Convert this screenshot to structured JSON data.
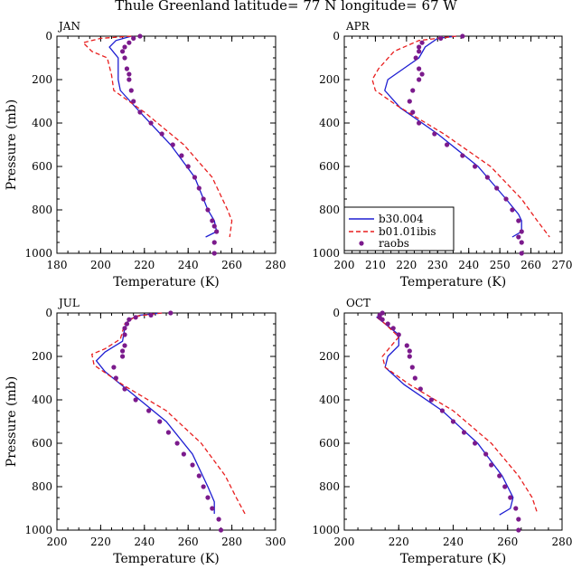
{
  "figure": {
    "title": "Thule Greenland  latitude= 77 N longitude= 67 W"
  },
  "legend": {
    "entries": [
      {
        "label": "b30.004",
        "color": "#1e1ed2",
        "style": "solid"
      },
      {
        "label": "b01.01ibis",
        "color": "#e81e1e",
        "style": "dashed"
      },
      {
        "label": "raobs",
        "color": "#7b1a8c",
        "style": "dots"
      }
    ]
  },
  "chart_data": [
    {
      "type": "line",
      "panel": "JAN",
      "xlabel": "Temperature (K)",
      "ylabel": "Pressure (mb)",
      "xlim": [
        180,
        280
      ],
      "xticks": [
        180,
        200,
        220,
        240,
        260,
        280
      ],
      "ylim": [
        1000,
        0
      ],
      "yticks": [
        0,
        200,
        400,
        600,
        800,
        1000
      ],
      "series": [
        {
          "name": "b30.004",
          "points": [
            [
              214,
              0
            ],
            [
              207,
              20
            ],
            [
              204,
              50
            ],
            [
              208,
              100
            ],
            [
              208,
              200
            ],
            [
              209,
              250
            ],
            [
              218,
              350
            ],
            [
              232,
              500
            ],
            [
              243,
              650
            ],
            [
              249,
              800
            ],
            [
              252,
              850
            ],
            [
              253,
              900
            ],
            [
              248,
              925
            ]
          ]
        },
        {
          "name": "b01.01ibis",
          "points": [
            [
              214,
              0
            ],
            [
              200,
              10
            ],
            [
              192,
              30
            ],
            [
              196,
              70
            ],
            [
              203,
              100
            ],
            [
              205,
              180
            ],
            [
              206,
              250
            ],
            [
              220,
              350
            ],
            [
              238,
              500
            ],
            [
              251,
              650
            ],
            [
              258,
              800
            ],
            [
              260,
              850
            ],
            [
              259,
              925
            ]
          ]
        },
        {
          "name": "raobs",
          "points": [
            [
              218,
              0
            ],
            [
              215,
              10
            ],
            [
              213,
              30
            ],
            [
              211,
              50
            ],
            [
              210,
              70
            ],
            [
              211,
              100
            ],
            [
              212,
              150
            ],
            [
              213,
              175
            ],
            [
              213,
              200
            ],
            [
              214,
              250
            ],
            [
              215,
              300
            ],
            [
              218,
              350
            ],
            [
              223,
              400
            ],
            [
              228,
              450
            ],
            [
              233,
              500
            ],
            [
              237,
              550
            ],
            [
              240,
              600
            ],
            [
              243,
              650
            ],
            [
              245,
              700
            ],
            [
              247,
              750
            ],
            [
              249,
              800
            ],
            [
              251,
              850
            ],
            [
              252,
              875
            ],
            [
              253,
              900
            ],
            [
              252,
              950
            ],
            [
              252,
              1000
            ]
          ]
        }
      ]
    },
    {
      "type": "line",
      "panel": "APR",
      "xlabel": "Temperature (K)",
      "ylabel": "",
      "xlim": [
        200,
        270
      ],
      "xticks": [
        200,
        210,
        220,
        230,
        240,
        250,
        260,
        270
      ],
      "ylim": [
        1000,
        0
      ],
      "yticks": [
        0,
        200,
        400,
        600,
        800,
        1000
      ],
      "series": [
        {
          "name": "b30.004",
          "points": [
            [
              236,
              0
            ],
            [
              230,
              10
            ],
            [
              226,
              50
            ],
            [
              224,
              100
            ],
            [
              219,
              150
            ],
            [
              214,
              200
            ],
            [
              213,
              250
            ],
            [
              218,
              330
            ],
            [
              230,
              450
            ],
            [
              243,
              600
            ],
            [
              252,
              750
            ],
            [
              256,
              820
            ],
            [
              257,
              850
            ],
            [
              257,
              900
            ],
            [
              254,
              925
            ]
          ]
        },
        {
          "name": "b01.01ibis",
          "points": [
            [
              236,
              0
            ],
            [
              224,
              20
            ],
            [
              216,
              70
            ],
            [
              211,
              150
            ],
            [
              209,
              200
            ],
            [
              210,
              250
            ],
            [
              217,
              320
            ],
            [
              232,
              450
            ],
            [
              247,
              600
            ],
            [
              257,
              750
            ],
            [
              262,
              850
            ],
            [
              266,
              925
            ]
          ]
        },
        {
          "name": "raobs",
          "points": [
            [
              238,
              0
            ],
            [
              231,
              10
            ],
            [
              225,
              30
            ],
            [
              224,
              50
            ],
            [
              224,
              70
            ],
            [
              223,
              100
            ],
            [
              224,
              150
            ],
            [
              225,
              175
            ],
            [
              224,
              200
            ],
            [
              222,
              250
            ],
            [
              221,
              300
            ],
            [
              222,
              350
            ],
            [
              224,
              400
            ],
            [
              229,
              450
            ],
            [
              233,
              500
            ],
            [
              238,
              550
            ],
            [
              242,
              600
            ],
            [
              246,
              650
            ],
            [
              249,
              700
            ],
            [
              252,
              750
            ],
            [
              254,
              800
            ],
            [
              256,
              850
            ],
            [
              257,
              900
            ],
            [
              256,
              925
            ],
            [
              257,
              950
            ],
            [
              257,
              1000
            ]
          ]
        }
      ]
    },
    {
      "type": "line",
      "panel": "JUL",
      "xlabel": "Temperature (K)",
      "ylabel": "Pressure (mb)",
      "xlim": [
        200,
        300
      ],
      "xticks": [
        200,
        220,
        240,
        260,
        280,
        300
      ],
      "ylim": [
        1000,
        0
      ],
      "yticks": [
        0,
        200,
        400,
        600,
        800,
        1000
      ],
      "series": [
        {
          "name": "b30.004",
          "points": [
            [
              248,
              0
            ],
            [
              238,
              10
            ],
            [
              233,
              30
            ],
            [
              231,
              70
            ],
            [
              230,
              130
            ],
            [
              222,
              180
            ],
            [
              218,
              220
            ],
            [
              222,
              270
            ],
            [
              233,
              360
            ],
            [
              250,
              500
            ],
            [
              262,
              650
            ],
            [
              269,
              800
            ],
            [
              272,
              870
            ],
            [
              272,
              925
            ]
          ]
        },
        {
          "name": "b01.01ibis",
          "points": [
            [
              248,
              0
            ],
            [
              236,
              15
            ],
            [
              231,
              50
            ],
            [
              229,
              120
            ],
            [
              222,
              165
            ],
            [
              216,
              190
            ],
            [
              217,
              240
            ],
            [
              230,
              330
            ],
            [
              250,
              450
            ],
            [
              266,
              600
            ],
            [
              277,
              750
            ],
            [
              282,
              850
            ],
            [
              286,
              925
            ]
          ]
        },
        {
          "name": "raobs",
          "points": [
            [
              252,
              0
            ],
            [
              243,
              10
            ],
            [
              236,
              20
            ],
            [
              233,
              30
            ],
            [
              232,
              50
            ],
            [
              231,
              70
            ],
            [
              231,
              100
            ],
            [
              231,
              150
            ],
            [
              230,
              175
            ],
            [
              230,
              200
            ],
            [
              226,
              250
            ],
            [
              227,
              300
            ],
            [
              231,
              350
            ],
            [
              236,
              400
            ],
            [
              242,
              450
            ],
            [
              247,
              500
            ],
            [
              251,
              550
            ],
            [
              255,
              600
            ],
            [
              258,
              650
            ],
            [
              262,
              700
            ],
            [
              265,
              750
            ],
            [
              267,
              800
            ],
            [
              269,
              850
            ],
            [
              271,
              900
            ],
            [
              274,
              950
            ],
            [
              275,
              1000
            ]
          ]
        }
      ]
    },
    {
      "type": "line",
      "panel": "OCT",
      "xlabel": "Temperature (K)",
      "ylabel": "",
      "xlim": [
        200,
        280
      ],
      "xticks": [
        200,
        220,
        240,
        260,
        280
      ],
      "ylim": [
        1000,
        0
      ],
      "yticks": [
        0,
        200,
        400,
        600,
        800,
        1000
      ],
      "series": [
        {
          "name": "b30.004",
          "points": [
            [
              214,
              0
            ],
            [
              212,
              20
            ],
            [
              215,
              50
            ],
            [
              220,
              100
            ],
            [
              220,
              150
            ],
            [
              216,
              200
            ],
            [
              215,
              250
            ],
            [
              222,
              330
            ],
            [
              236,
              450
            ],
            [
              249,
              600
            ],
            [
              258,
              750
            ],
            [
              262,
              850
            ],
            [
              261,
              900
            ],
            [
              257,
              930
            ]
          ]
        },
        {
          "name": "b01.01ibis",
          "points": [
            [
              214,
              0
            ],
            [
              212,
              20
            ],
            [
              215,
              50
            ],
            [
              220,
              110
            ],
            [
              216,
              170
            ],
            [
              214,
              200
            ],
            [
              215,
              250
            ],
            [
              224,
              330
            ],
            [
              240,
              450
            ],
            [
              254,
              600
            ],
            [
              264,
              750
            ],
            [
              269,
              850
            ],
            [
              271,
              925
            ]
          ]
        },
        {
          "name": "raobs",
          "points": [
            [
              214,
              0
            ],
            [
              213,
              10
            ],
            [
              213,
              20
            ],
            [
              214,
              30
            ],
            [
              216,
              50
            ],
            [
              218,
              70
            ],
            [
              220,
              100
            ],
            [
              223,
              150
            ],
            [
              224,
              175
            ],
            [
              224,
              200
            ],
            [
              225,
              250
            ],
            [
              226,
              300
            ],
            [
              228,
              350
            ],
            [
              232,
              400
            ],
            [
              236,
              450
            ],
            [
              240,
              500
            ],
            [
              244,
              550
            ],
            [
              248,
              600
            ],
            [
              252,
              650
            ],
            [
              254,
              700
            ],
            [
              257,
              750
            ],
            [
              259,
              800
            ],
            [
              261,
              850
            ],
            [
              263,
              900
            ],
            [
              264,
              950
            ],
            [
              264,
              1000
            ]
          ]
        }
      ]
    }
  ]
}
